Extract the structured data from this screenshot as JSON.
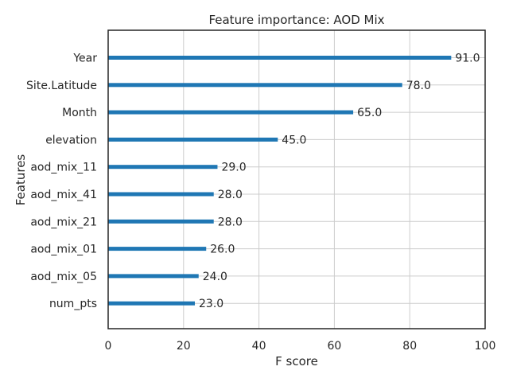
{
  "chart_data": {
    "type": "bar",
    "orientation": "horizontal",
    "title": "Feature importance: AOD Mix",
    "xlabel": "F score",
    "ylabel": "Features",
    "xlim": [
      0,
      100
    ],
    "xticks": [
      "0",
      "20",
      "40",
      "60",
      "80",
      "100"
    ],
    "grid": true,
    "bar_color": "#1f77b4",
    "categories": [
      "Year",
      "Site.Latitude",
      "Month",
      "elevation",
      "aod_mix_11",
      "aod_mix_41",
      "aod_mix_21",
      "aod_mix_01",
      "aod_mix_05",
      "num_pts"
    ],
    "values": [
      91,
      78,
      65,
      45,
      29,
      28,
      28,
      26,
      24,
      23
    ],
    "value_labels": [
      "91.0",
      "78.0",
      "65.0",
      "45.0",
      "29.0",
      "28.0",
      "28.0",
      "26.0",
      "24.0",
      "23.0"
    ]
  }
}
